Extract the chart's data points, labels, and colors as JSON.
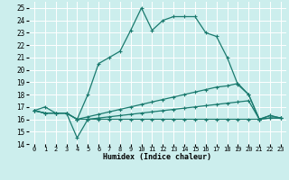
{
  "xlabel": "Humidex (Indice chaleur)",
  "bg_color": "#cceeed",
  "grid_color": "#ffffff",
  "line_color": "#1a7a6e",
  "xlim": [
    -0.5,
    23.5
  ],
  "ylim": [
    14,
    25.5
  ],
  "yticks": [
    14,
    15,
    16,
    17,
    18,
    19,
    20,
    21,
    22,
    23,
    24,
    25
  ],
  "xticks": [
    0,
    1,
    2,
    3,
    4,
    5,
    6,
    7,
    8,
    9,
    10,
    11,
    12,
    13,
    14,
    15,
    16,
    17,
    18,
    19,
    20,
    21,
    22,
    23
  ],
  "series": {
    "main": {
      "x": [
        0,
        1,
        2,
        3,
        4,
        5,
        6,
        7,
        8,
        9,
        10,
        11,
        12,
        13,
        14,
        15,
        16,
        17,
        18,
        19,
        20,
        21,
        22,
        23
      ],
      "y": [
        16.7,
        17.0,
        16.5,
        16.5,
        16.0,
        18.0,
        20.5,
        21.0,
        21.5,
        23.2,
        25.0,
        23.2,
        24.0,
        24.3,
        24.3,
        24.3,
        23.0,
        22.7,
        21.0,
        18.8,
        18.0,
        16.0,
        16.3,
        16.1
      ]
    },
    "line2": {
      "x": [
        0,
        1,
        2,
        3,
        4,
        5,
        6,
        7,
        8,
        9,
        10,
        11,
        12,
        13,
        14,
        15,
        16,
        17,
        18,
        19,
        20,
        21,
        22,
        23
      ],
      "y": [
        16.7,
        16.5,
        16.5,
        16.5,
        16.0,
        16.2,
        16.4,
        16.6,
        16.8,
        17.0,
        17.2,
        17.4,
        17.6,
        17.8,
        18.0,
        18.2,
        18.4,
        18.6,
        18.7,
        18.9,
        18.0,
        16.0,
        16.3,
        16.1
      ]
    },
    "line3": {
      "x": [
        0,
        1,
        2,
        3,
        4,
        5,
        6,
        7,
        8,
        9,
        10,
        11,
        12,
        13,
        14,
        15,
        16,
        17,
        18,
        19,
        20,
        21,
        22,
        23
      ],
      "y": [
        16.7,
        16.5,
        16.5,
        16.5,
        14.5,
        16.0,
        16.1,
        16.2,
        16.3,
        16.4,
        16.5,
        16.6,
        16.7,
        16.8,
        16.9,
        17.0,
        17.1,
        17.2,
        17.3,
        17.4,
        17.5,
        16.0,
        16.1,
        16.1
      ]
    },
    "line4": {
      "x": [
        0,
        1,
        2,
        3,
        4,
        5,
        6,
        7,
        8,
        9,
        10,
        11,
        12,
        13,
        14,
        15,
        16,
        17,
        18,
        19,
        20,
        21,
        22,
        23
      ],
      "y": [
        16.7,
        16.5,
        16.5,
        16.5,
        16.0,
        16.0,
        16.0,
        16.0,
        16.0,
        16.0,
        16.0,
        16.0,
        16.0,
        16.0,
        16.0,
        16.0,
        16.0,
        16.0,
        16.0,
        16.0,
        16.0,
        16.0,
        16.1,
        16.1
      ]
    }
  }
}
